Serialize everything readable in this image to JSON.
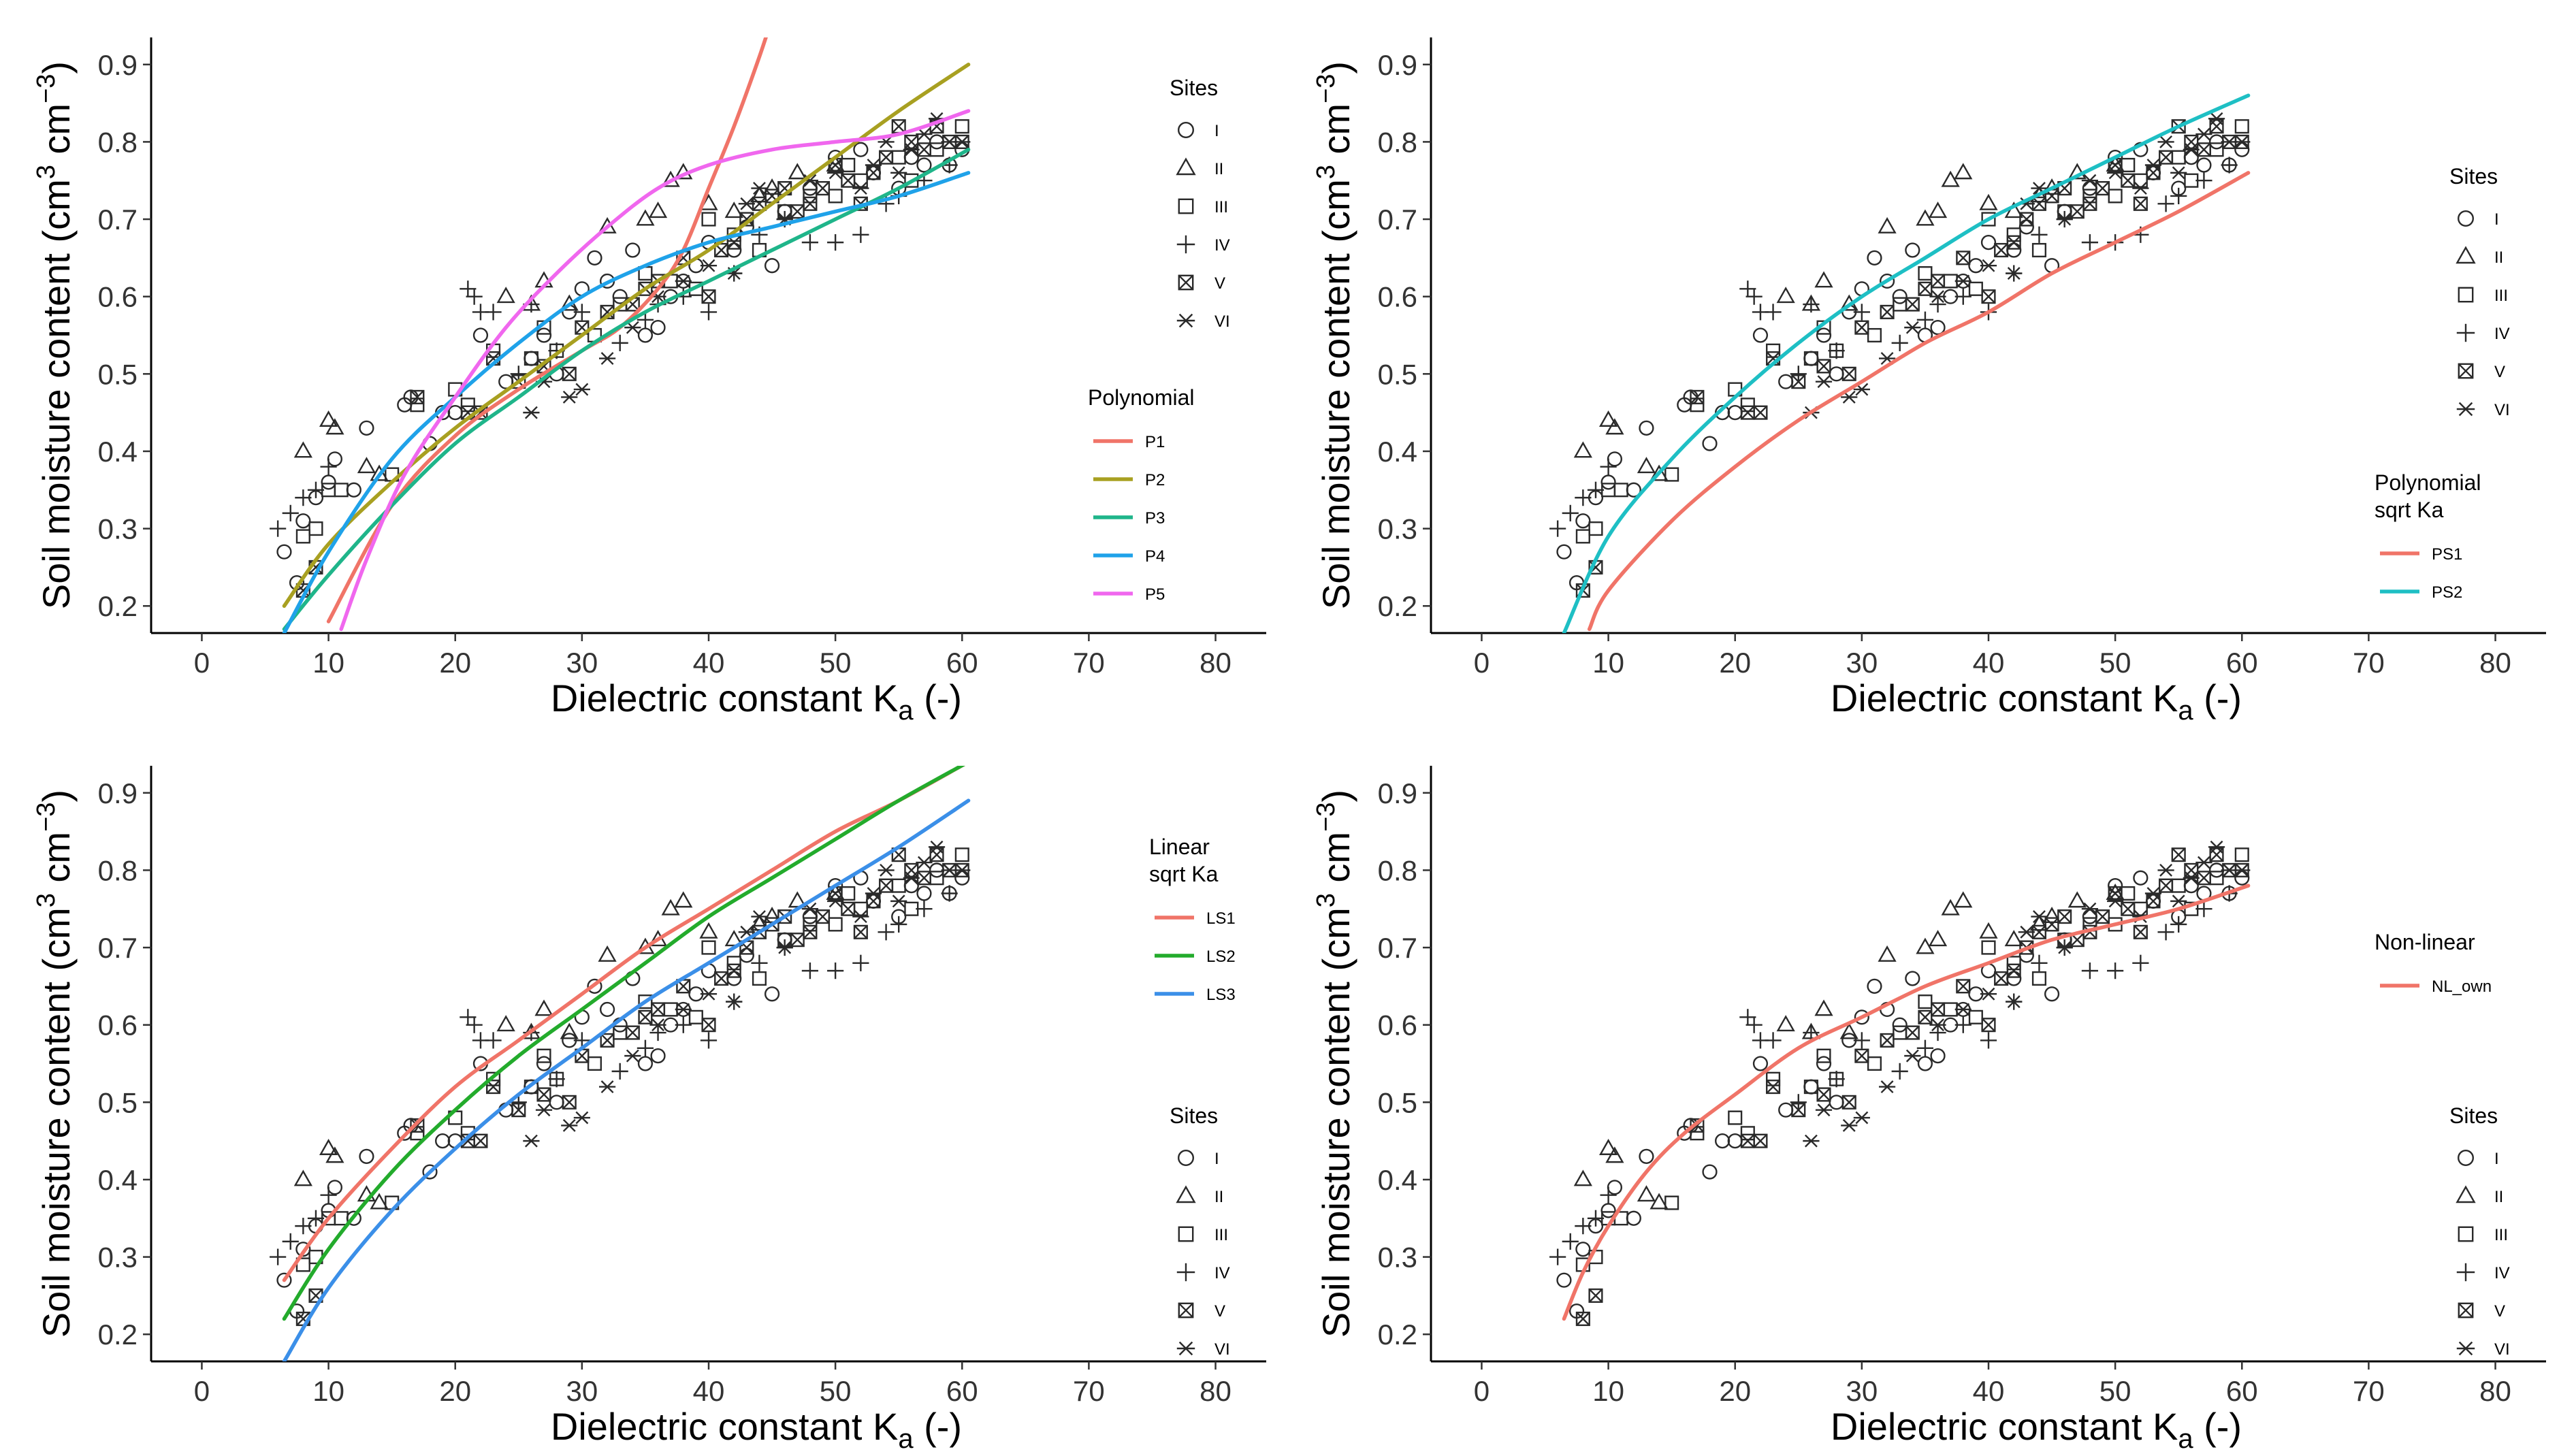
{
  "palette": {
    "P1": "#f07468",
    "P2": "#a8a021",
    "P3": "#1fb58a",
    "P4": "#1fa2e9",
    "P5": "#f067ee",
    "PS1": "#f07468",
    "PS2": "#1ebfc4",
    "LS1": "#f07468",
    "LS2": "#23ab2c",
    "LS3": "#3b8fe8",
    "NL_own": "#f07468",
    "points": "#2a2a2a"
  },
  "sites": {
    "title": "Sites",
    "items": [
      {
        "label": "I",
        "shape": "circle"
      },
      {
        "label": "II",
        "shape": "triangle"
      },
      {
        "label": "III",
        "shape": "square"
      },
      {
        "label": "IV",
        "shape": "plus"
      },
      {
        "label": "V",
        "shape": "boxcross"
      },
      {
        "label": "VI",
        "shape": "asterisk"
      }
    ]
  },
  "chart_data": [
    {
      "type": "scatter",
      "id": "polynomial",
      "xlabel": "Dielectric constant   K",
      "xlabel_sub": "a",
      "xlabel_unit": " (-)",
      "ylabel": "Soil moisture content (cm",
      "ylabel_sup1": "3",
      "ylabel_mid": " cm",
      "ylabel_sup2": "−3",
      "ylabel_end": ")",
      "xlim": [
        -4,
        84
      ],
      "ylim": [
        0.165,
        0.935
      ],
      "xticks": [
        "0",
        "10",
        "20",
        "30",
        "40",
        "50",
        "60",
        "70",
        "80"
      ],
      "yticks": [
        "0.2",
        "0.3",
        "0.4",
        "0.5",
        "0.6",
        "0.7",
        "0.8",
        "0.9"
      ],
      "grid": false,
      "legend": {
        "position": "right"
      },
      "model_legend": {
        "title_lines": [
          "Polynomial"
        ],
        "entries": [
          "P1",
          "P2",
          "P3",
          "P4",
          "P5"
        ]
      },
      "series": [
        {
          "name": "P1",
          "x": [
            10,
            15,
            20,
            25,
            30,
            33,
            36,
            38,
            40,
            42,
            44,
            45
          ],
          "y": [
            0.18,
            0.33,
            0.42,
            0.48,
            0.53,
            0.56,
            0.61,
            0.66,
            0.74,
            0.82,
            0.91,
            0.96
          ]
        },
        {
          "name": "P2",
          "x": [
            6.5,
            10,
            15,
            20,
            25,
            30,
            35,
            40,
            45,
            50,
            55,
            60.5
          ],
          "y": [
            0.2,
            0.28,
            0.36,
            0.43,
            0.49,
            0.55,
            0.61,
            0.66,
            0.72,
            0.78,
            0.84,
            0.9
          ]
        },
        {
          "name": "P3",
          "x": [
            6.5,
            10,
            15,
            20,
            25,
            30,
            35,
            40,
            45,
            50,
            55,
            60.5
          ],
          "y": [
            0.17,
            0.24,
            0.33,
            0.41,
            0.47,
            0.53,
            0.58,
            0.62,
            0.66,
            0.7,
            0.74,
            0.79
          ]
        },
        {
          "name": "P4",
          "x": [
            6.5,
            10,
            15,
            20,
            25,
            30,
            35,
            40,
            45,
            50,
            55,
            60.5
          ],
          "y": [
            0.165,
            0.27,
            0.39,
            0.47,
            0.54,
            0.6,
            0.64,
            0.67,
            0.69,
            0.71,
            0.73,
            0.76
          ]
        },
        {
          "name": "P5",
          "x": [
            11,
            13,
            16,
            20,
            24,
            28,
            32,
            36,
            40,
            45,
            50,
            55,
            60.5
          ],
          "y": [
            0.17,
            0.26,
            0.37,
            0.47,
            0.56,
            0.63,
            0.69,
            0.74,
            0.77,
            0.79,
            0.8,
            0.81,
            0.84
          ]
        }
      ]
    },
    {
      "type": "scatter",
      "id": "polynomial-sqrt",
      "xlabel": "Dielectric constant   K",
      "xlabel_sub": "a",
      "xlabel_unit": " (-)",
      "ylabel": "Soil moisture content (cm",
      "ylabel_sup1": "3",
      "ylabel_mid": " cm",
      "ylabel_sup2": "−3",
      "ylabel_end": ")",
      "xlim": [
        -4,
        84
      ],
      "ylim": [
        0.165,
        0.935
      ],
      "xticks": [
        "0",
        "10",
        "20",
        "30",
        "40",
        "50",
        "60",
        "70",
        "80"
      ],
      "yticks": [
        "0.2",
        "0.3",
        "0.4",
        "0.5",
        "0.6",
        "0.7",
        "0.8",
        "0.9"
      ],
      "grid": false,
      "legend": {
        "position": "right"
      },
      "model_legend": {
        "title_lines": [
          "Polynomial",
          "sqrt Ka"
        ],
        "entries": [
          "PS1",
          "PS2"
        ]
      },
      "series": [
        {
          "name": "PS1",
          "x": [
            8.5,
            10,
            15,
            20,
            25,
            30,
            35,
            40,
            45,
            50,
            55,
            60.5
          ],
          "y": [
            0.17,
            0.22,
            0.31,
            0.38,
            0.44,
            0.49,
            0.54,
            0.58,
            0.63,
            0.67,
            0.71,
            0.76
          ]
        },
        {
          "name": "PS2",
          "x": [
            6.5,
            10,
            15,
            20,
            25,
            30,
            35,
            40,
            45,
            50,
            55,
            60.5
          ],
          "y": [
            0.165,
            0.29,
            0.39,
            0.47,
            0.54,
            0.6,
            0.65,
            0.7,
            0.74,
            0.78,
            0.82,
            0.86
          ]
        }
      ]
    },
    {
      "type": "scatter",
      "id": "linear-sqrt",
      "xlabel": "Dielectric constant   K",
      "xlabel_sub": "a",
      "xlabel_unit": " (-)",
      "ylabel": "Soil moisture content (cm",
      "ylabel_sup1": "3",
      "ylabel_mid": " cm",
      "ylabel_sup2": "−3",
      "ylabel_end": ")",
      "xlim": [
        -4,
        84
      ],
      "ylim": [
        0.165,
        0.935
      ],
      "xticks": [
        "0",
        "10",
        "20",
        "30",
        "40",
        "50",
        "60",
        "70",
        "80"
      ],
      "yticks": [
        "0.2",
        "0.3",
        "0.4",
        "0.5",
        "0.6",
        "0.7",
        "0.8",
        "0.9"
      ],
      "grid": false,
      "legend": {
        "position": "right"
      },
      "model_legend": {
        "title_lines": [
          "Linear",
          "sqrt Ka"
        ],
        "entries": [
          "LS1",
          "LS2",
          "LS3"
        ]
      },
      "series": [
        {
          "name": "LS1",
          "x": [
            6.5,
            10,
            15,
            20,
            25,
            30,
            35,
            40,
            45,
            50,
            55,
            60.5
          ],
          "y": [
            0.27,
            0.35,
            0.44,
            0.52,
            0.58,
            0.64,
            0.7,
            0.75,
            0.8,
            0.85,
            0.89,
            0.94
          ]
        },
        {
          "name": "LS2",
          "x": [
            6.5,
            10,
            15,
            20,
            25,
            30,
            35,
            40,
            45,
            50,
            55,
            60.5
          ],
          "y": [
            0.22,
            0.31,
            0.41,
            0.49,
            0.56,
            0.62,
            0.68,
            0.74,
            0.79,
            0.84,
            0.89,
            0.94
          ]
        },
        {
          "name": "LS3",
          "x": [
            6.5,
            10,
            15,
            20,
            25,
            30,
            35,
            40,
            45,
            50,
            55,
            60.5
          ],
          "y": [
            0.165,
            0.26,
            0.36,
            0.44,
            0.51,
            0.57,
            0.63,
            0.68,
            0.73,
            0.78,
            0.83,
            0.89
          ]
        }
      ]
    },
    {
      "type": "scatter",
      "id": "non-linear",
      "xlabel": "Dielectric constant   K",
      "xlabel_sub": "a",
      "xlabel_unit": " (-)",
      "ylabel": "Soil moisture content (cm",
      "ylabel_sup1": "3",
      "ylabel_mid": " cm",
      "ylabel_sup2": "−3",
      "ylabel_end": ")",
      "xlim": [
        -4,
        84
      ],
      "ylim": [
        0.165,
        0.935
      ],
      "xticks": [
        "0",
        "10",
        "20",
        "30",
        "40",
        "50",
        "60",
        "70",
        "80"
      ],
      "yticks": [
        "0.2",
        "0.3",
        "0.4",
        "0.5",
        "0.6",
        "0.7",
        "0.8",
        "0.9"
      ],
      "grid": false,
      "legend": {
        "position": "right"
      },
      "model_legend": {
        "title_lines": [
          "Non-linear"
        ],
        "entries": [
          "NL_own"
        ]
      },
      "series": [
        {
          "name": "NL_own",
          "x": [
            6.5,
            8,
            10,
            13,
            16,
            20,
            25,
            30,
            35,
            40,
            45,
            50,
            55,
            60.5
          ],
          "y": [
            0.22,
            0.28,
            0.34,
            0.41,
            0.46,
            0.51,
            0.57,
            0.61,
            0.65,
            0.68,
            0.71,
            0.73,
            0.75,
            0.78
          ]
        }
      ]
    }
  ],
  "observations": {
    "sites": [
      "I",
      "II",
      "III",
      "IV",
      "V",
      "VI"
    ],
    "I": [
      [
        6.5,
        0.27
      ],
      [
        7.5,
        0.23
      ],
      [
        8,
        0.31
      ],
      [
        9,
        0.34
      ],
      [
        10,
        0.36
      ],
      [
        10.5,
        0.39
      ],
      [
        12,
        0.35
      ],
      [
        13,
        0.43
      ],
      [
        16,
        0.46
      ],
      [
        16.5,
        0.47
      ],
      [
        18,
        0.41
      ],
      [
        19,
        0.45
      ],
      [
        20,
        0.45
      ],
      [
        22,
        0.55
      ],
      [
        24,
        0.49
      ],
      [
        26,
        0.52
      ],
      [
        27,
        0.55
      ],
      [
        28,
        0.5
      ],
      [
        29,
        0.58
      ],
      [
        30,
        0.61
      ],
      [
        31,
        0.65
      ],
      [
        32,
        0.62
      ],
      [
        33,
        0.6
      ],
      [
        34,
        0.66
      ],
      [
        35,
        0.55
      ],
      [
        36,
        0.56
      ],
      [
        37,
        0.6
      ],
      [
        38,
        0.62
      ],
      [
        39,
        0.64
      ],
      [
        40,
        0.67
      ],
      [
        42,
        0.66
      ],
      [
        43,
        0.69
      ],
      [
        45,
        0.64
      ],
      [
        46,
        0.71
      ],
      [
        48,
        0.74
      ],
      [
        50,
        0.78
      ],
      [
        52,
        0.79
      ],
      [
        53,
        0.76
      ],
      [
        55,
        0.74
      ],
      [
        56,
        0.78
      ],
      [
        57,
        0.77
      ],
      [
        58,
        0.8
      ],
      [
        59,
        0.77
      ],
      [
        60,
        0.79
      ]
    ],
    "II": [
      [
        8,
        0.4
      ],
      [
        10,
        0.44
      ],
      [
        10.5,
        0.43
      ],
      [
        13,
        0.38
      ],
      [
        14,
        0.37
      ],
      [
        24,
        0.6
      ],
      [
        26,
        0.59
      ],
      [
        27,
        0.62
      ],
      [
        29,
        0.59
      ],
      [
        32,
        0.69
      ],
      [
        35,
        0.7
      ],
      [
        36,
        0.71
      ],
      [
        37,
        0.75
      ],
      [
        38,
        0.76
      ],
      [
        40,
        0.72
      ],
      [
        42,
        0.71
      ],
      [
        44,
        0.73
      ],
      [
        45,
        0.74
      ],
      [
        47,
        0.76
      ],
      [
        50,
        0.77
      ]
    ],
    "III": [
      [
        8,
        0.29
      ],
      [
        9,
        0.3
      ],
      [
        10,
        0.35
      ],
      [
        11,
        0.35
      ],
      [
        15,
        0.37
      ],
      [
        17,
        0.46
      ],
      [
        20,
        0.48
      ],
      [
        21,
        0.46
      ],
      [
        23,
        0.53
      ],
      [
        26,
        0.52
      ],
      [
        27,
        0.56
      ],
      [
        28,
        0.53
      ],
      [
        31,
        0.55
      ],
      [
        33,
        0.59
      ],
      [
        35,
        0.63
      ],
      [
        37,
        0.62
      ],
      [
        39,
        0.61
      ],
      [
        40,
        0.7
      ],
      [
        42,
        0.68
      ],
      [
        44,
        0.66
      ],
      [
        46,
        0.71
      ],
      [
        48,
        0.73
      ],
      [
        50,
        0.73
      ],
      [
        51,
        0.77
      ],
      [
        52,
        0.75
      ],
      [
        55,
        0.78
      ],
      [
        56,
        0.75
      ],
      [
        58,
        0.79
      ],
      [
        60,
        0.82
      ]
    ],
    "IV": [
      [
        6,
        0.3
      ],
      [
        7,
        0.32
      ],
      [
        8,
        0.34
      ],
      [
        9,
        0.35
      ],
      [
        10,
        0.38
      ],
      [
        21,
        0.61
      ],
      [
        21.5,
        0.6
      ],
      [
        22,
        0.58
      ],
      [
        23,
        0.58
      ],
      [
        25,
        0.5
      ],
      [
        26,
        0.59
      ],
      [
        28,
        0.53
      ],
      [
        30,
        0.58
      ],
      [
        33,
        0.54
      ],
      [
        35,
        0.57
      ],
      [
        36,
        0.59
      ],
      [
        38,
        0.6
      ],
      [
        40,
        0.58
      ],
      [
        42,
        0.63
      ],
      [
        44,
        0.68
      ],
      [
        46,
        0.7
      ],
      [
        48,
        0.67
      ],
      [
        50,
        0.67
      ],
      [
        52,
        0.68
      ],
      [
        54,
        0.72
      ],
      [
        55,
        0.73
      ],
      [
        57,
        0.75
      ],
      [
        59,
        0.77
      ]
    ],
    "V": [
      [
        8,
        0.22
      ],
      [
        9,
        0.25
      ],
      [
        17,
        0.47
      ],
      [
        21,
        0.45
      ],
      [
        22,
        0.45
      ],
      [
        23,
        0.52
      ],
      [
        25,
        0.49
      ],
      [
        27,
        0.51
      ],
      [
        30,
        0.56
      ],
      [
        32,
        0.58
      ],
      [
        34,
        0.59
      ],
      [
        35,
        0.61
      ],
      [
        36,
        0.62
      ],
      [
        38,
        0.65
      ],
      [
        40,
        0.6
      ],
      [
        41,
        0.66
      ],
      [
        42,
        0.67
      ],
      [
        43,
        0.7
      ],
      [
        44,
        0.72
      ],
      [
        45,
        0.73
      ],
      [
        46,
        0.74
      ],
      [
        47,
        0.71
      ],
      [
        48,
        0.72
      ],
      [
        49,
        0.74
      ],
      [
        50,
        0.77
      ],
      [
        51,
        0.75
      ],
      [
        52,
        0.72
      ],
      [
        53,
        0.76
      ],
      [
        54,
        0.78
      ],
      [
        55,
        0.82
      ],
      [
        56,
        0.8
      ],
      [
        57,
        0.79
      ],
      [
        58,
        0.82
      ],
      [
        59,
        0.8
      ],
      [
        60,
        0.8
      ],
      [
        29,
        0.5
      ]
    ],
    "VI": [
      [
        26,
        0.45
      ],
      [
        27,
        0.49
      ],
      [
        29,
        0.47
      ],
      [
        30,
        0.48
      ],
      [
        32,
        0.52
      ],
      [
        34,
        0.56
      ],
      [
        36,
        0.6
      ],
      [
        38,
        0.62
      ],
      [
        40,
        0.64
      ],
      [
        42,
        0.63
      ],
      [
        43,
        0.72
      ],
      [
        44,
        0.74
      ],
      [
        46,
        0.7
      ],
      [
        48,
        0.75
      ],
      [
        50,
        0.76
      ],
      [
        52,
        0.74
      ],
      [
        53,
        0.77
      ],
      [
        54,
        0.8
      ],
      [
        55,
        0.76
      ],
      [
        56,
        0.79
      ],
      [
        57,
        0.81
      ],
      [
        58,
        0.83
      ],
      [
        59,
        0.8
      ],
      [
        60,
        0.8
      ]
    ]
  }
}
